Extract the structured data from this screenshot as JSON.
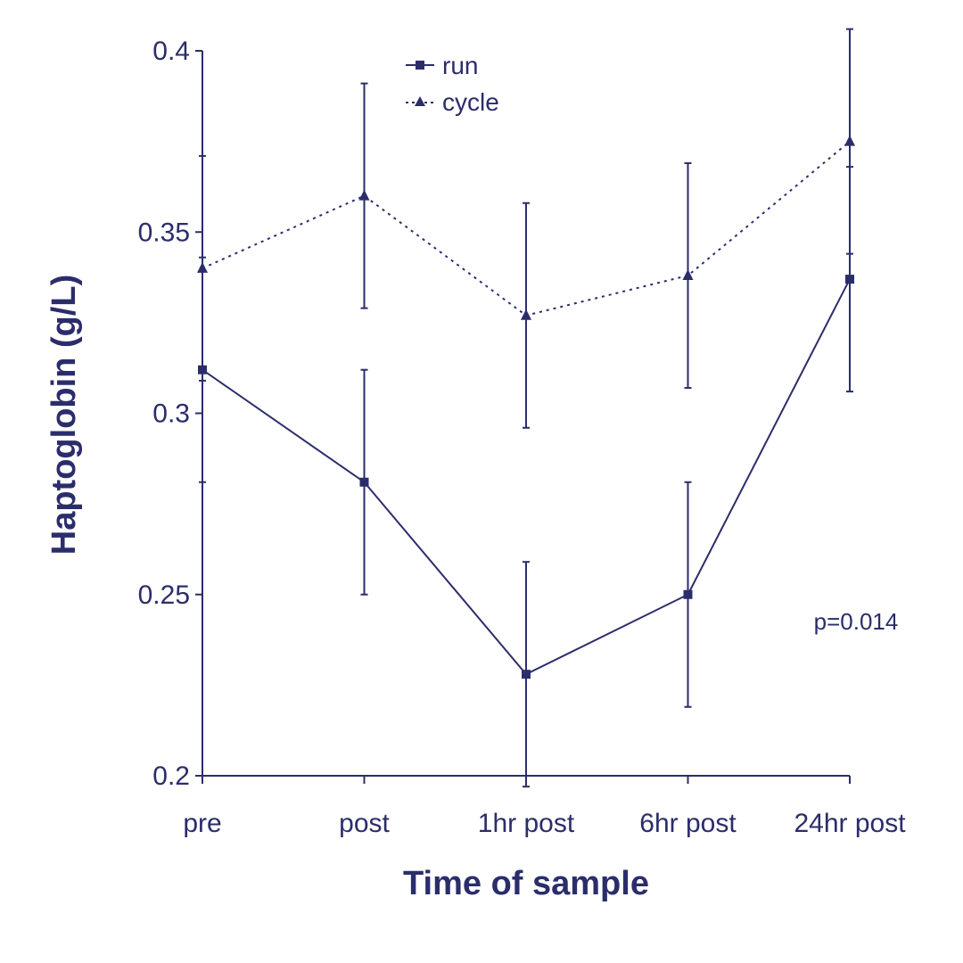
{
  "chart_data": {
    "type": "line",
    "title": "",
    "xlabel": "Time of sample",
    "ylabel": "Haptoglobin (g/L)",
    "categories": [
      "pre",
      "post",
      "1hr post",
      "6hr post",
      "24hr post"
    ],
    "ylim": [
      0.2,
      0.4
    ],
    "yticks": [
      "0.2",
      "0.25",
      "0.3",
      "0.35",
      "0.4"
    ],
    "grid": false,
    "legend_position": "top-center",
    "series": [
      {
        "name": "run",
        "style": "solid",
        "marker": "square",
        "values": [
          0.312,
          0.281,
          0.228,
          0.25,
          0.337
        ],
        "error": [
          0.031,
          0.031,
          0.031,
          0.031,
          0.031
        ]
      },
      {
        "name": "cycle",
        "style": "dotted",
        "marker": "triangle",
        "values": [
          0.34,
          0.36,
          0.327,
          0.338,
          0.375
        ],
        "error": [
          0.031,
          0.031,
          0.031,
          0.031,
          0.031
        ]
      }
    ],
    "annotation": "p=0.014",
    "color": "#2b2d6b"
  }
}
